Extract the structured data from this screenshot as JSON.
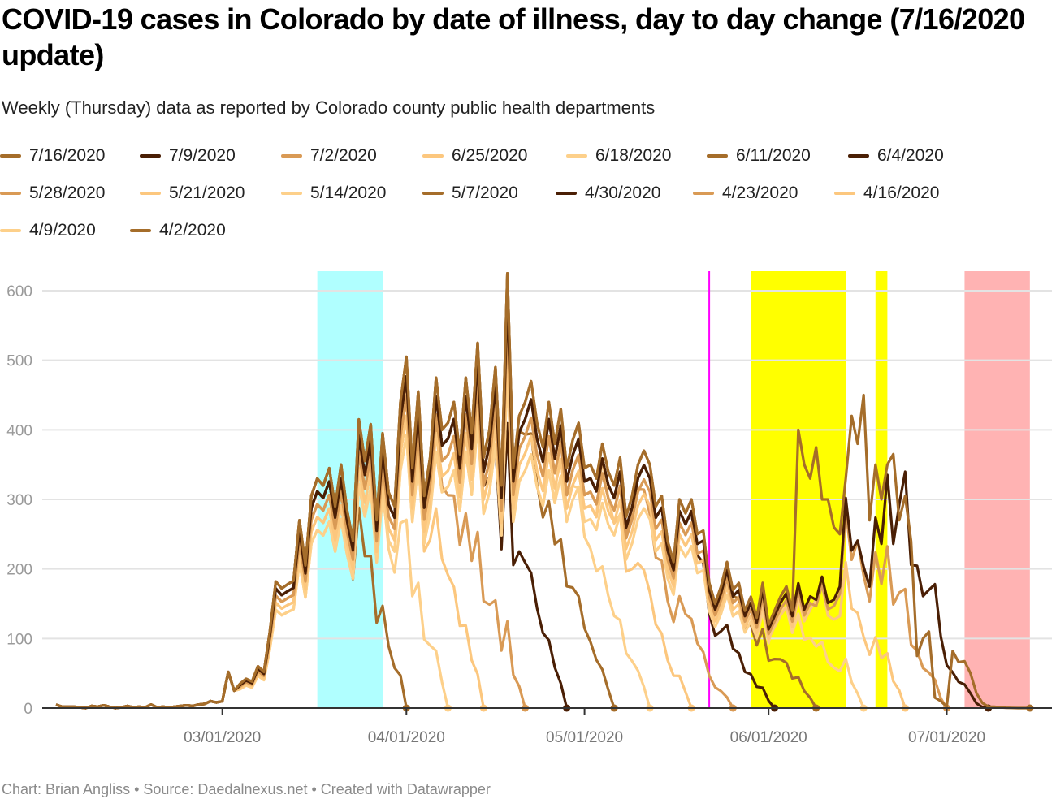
{
  "title": "COVID-19 cases in Colorado by date of illness, day to day change (7/16/2020 update)",
  "subtitle": "Weekly (Thursday) data as reported by Colorado county public health departments",
  "footer": "Chart: Brian Angliss • Source: Daedalnexus.net • Created with Datawrapper",
  "chart_data": {
    "type": "line",
    "title": "COVID-19 cases in Colorado by date of illness, day to day change (7/16/2020 update)",
    "xlabel": "",
    "ylabel": "",
    "ylim": [
      0,
      630
    ],
    "yticks": [
      0,
      100,
      200,
      300,
      400,
      500,
      600
    ],
    "xrange": [
      "2020-02-02",
      "2020-07-16"
    ],
    "xticks": [
      {
        "date": "2020-03-01",
        "label": "03/01/2020"
      },
      {
        "date": "2020-04-01",
        "label": "04/01/2020"
      },
      {
        "date": "2020-05-01",
        "label": "05/01/2020"
      },
      {
        "date": "2020-06-01",
        "label": "06/01/2020"
      },
      {
        "date": "2020-07-01",
        "label": "07/01/2020"
      }
    ],
    "grid": true,
    "legend_position": "top",
    "x_start": "2020-02-02",
    "base_values": [
      5,
      2,
      2,
      2,
      1,
      0,
      3,
      2,
      4,
      2,
      0,
      1,
      3,
      1,
      2,
      1,
      5,
      1,
      2,
      1,
      2,
      3,
      4,
      3,
      5,
      6,
      10,
      8,
      10,
      52,
      25,
      35,
      42,
      38,
      60,
      52,
      110,
      182,
      172,
      178,
      183,
      270,
      205,
      305,
      330,
      320,
      345,
      290,
      350,
      285,
      240,
      415,
      355,
      408,
      270,
      395,
      310,
      290,
      440,
      505,
      345,
      455,
      305,
      360,
      475,
      400,
      410,
      440,
      365,
      475,
      395,
      525,
      360,
      400,
      490,
      320,
      625,
      345,
      420,
      440,
      470,
      410,
      375,
      440,
      380,
      430,
      345,
      385,
      410,
      345,
      350,
      330,
      380,
      340,
      320,
      360,
      275,
      305,
      350,
      370,
      350,
      290,
      305,
      240,
      210,
      300,
      280,
      300,
      250,
      255,
      180,
      150,
      175,
      210,
      170,
      180,
      140,
      160,
      130,
      180,
      120,
      140,
      160,
      175,
      140,
      190,
      150,
      170,
      165,
      200,
      160,
      165,
      185,
      320,
      240,
      255,
      215,
      185,
      290,
      250,
      355,
      250,
      310,
      360,
      220,
      235,
      200,
      230,
      265,
      170,
      115,
      110,
      95,
      105,
      85,
      40,
      15,
      5,
      5,
      3,
      2,
      1,
      0,
      0,
      0,
      0
    ],
    "series": [
      {
        "name": "7/16/2020",
        "color": "#a56d2a",
        "end": "2020-07-15",
        "tail_days": 18,
        "overlay": [
          [
            125,
            400
          ],
          [
            126,
            350
          ],
          [
            127,
            330
          ],
          [
            128,
            375
          ],
          [
            129,
            300
          ],
          [
            130,
            300
          ],
          [
            131,
            260
          ],
          [
            132,
            250
          ],
          [
            133,
            330
          ],
          [
            134,
            420
          ],
          [
            135,
            380
          ],
          [
            136,
            450
          ],
          [
            137,
            270
          ],
          [
            138,
            350
          ],
          [
            139,
            300
          ],
          [
            140,
            350
          ],
          [
            141,
            365
          ],
          [
            142,
            270
          ],
          [
            143,
            305
          ],
          [
            144,
            240
          ],
          [
            145,
            75
          ],
          [
            146,
            100
          ],
          [
            147,
            110
          ],
          [
            148,
            15
          ],
          [
            149,
            10
          ],
          [
            150,
            2
          ]
        ]
      },
      {
        "name": "7/9/2020",
        "color": "#4a1f05",
        "end": "2020-07-08",
        "tail_days": 14
      },
      {
        "name": "7/2/2020",
        "color": "#d99a55",
        "end": "2020-07-01",
        "tail_days": 16
      },
      {
        "name": "6/25/2020",
        "color": "#fcc77e",
        "end": "2020-06-24",
        "tail_days": 16
      },
      {
        "name": "6/18/2020",
        "color": "#fdd08a",
        "end": "2020-06-17",
        "tail_days": 16
      },
      {
        "name": "6/11/2020",
        "color": "#a56d2a",
        "end": "2020-06-09",
        "tail_days": 15
      },
      {
        "name": "6/4/2020",
        "color": "#4a1f05",
        "end": "2020-06-02",
        "tail_days": 15
      },
      {
        "name": "5/28/2020",
        "color": "#d99a55",
        "end": "2020-05-26",
        "tail_days": 18
      },
      {
        "name": "5/21/2020",
        "color": "#fcc77e",
        "end": "2020-05-19",
        "tail_days": 16
      },
      {
        "name": "5/14/2020",
        "color": "#fdd08a",
        "end": "2020-05-12",
        "tail_days": 16
      },
      {
        "name": "5/7/2020",
        "color": "#a56d2a",
        "end": "2020-05-06",
        "tail_days": 17
      },
      {
        "name": "4/30/2020",
        "color": "#4a1f05",
        "end": "2020-04-28",
        "tail_days": 16
      },
      {
        "name": "4/23/2020",
        "color": "#d99a55",
        "end": "2020-04-21",
        "tail_days": 18
      },
      {
        "name": "4/16/2020",
        "color": "#fcc77e",
        "end": "2020-04-14",
        "tail_days": 14
      },
      {
        "name": "4/9/2020",
        "color": "#fdd08a",
        "end": "2020-04-08",
        "tail_days": 14
      },
      {
        "name": "4/2/2020",
        "color": "#a56d2a",
        "end": "2020-04-01",
        "tail_days": 12
      }
    ],
    "annotations": {
      "bands": [
        {
          "from": "2020-03-17",
          "to": "2020-03-28",
          "color": "#b0ffff"
        },
        {
          "from": "2020-05-29",
          "to": "2020-06-14",
          "color": "#ffff00"
        },
        {
          "from": "2020-06-19",
          "to": "2020-06-21",
          "color": "#ffff00"
        },
        {
          "from": "2020-07-04",
          "to": "2020-07-15",
          "color": "#ffb3b3"
        }
      ],
      "vlines": [
        {
          "date": "2020-05-22",
          "color": "#ff00ff"
        }
      ]
    }
  }
}
